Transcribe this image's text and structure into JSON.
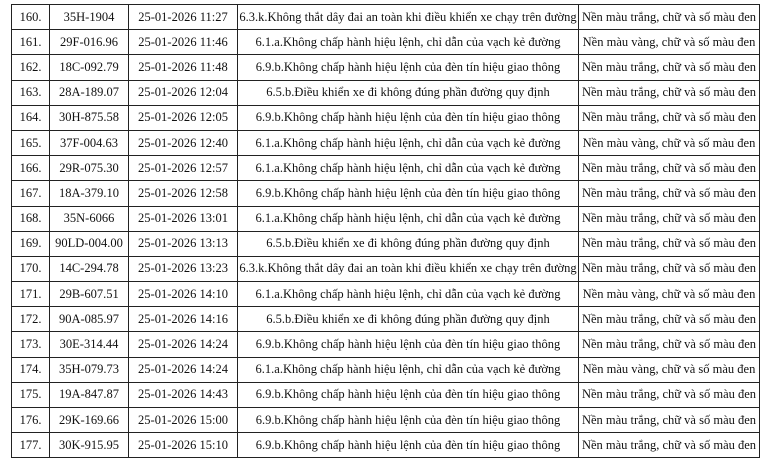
{
  "rows": [
    {
      "no": "160.",
      "plate": "35H-1904",
      "time": "25-01-2026 11:27",
      "violation": "6.3.k.Không thắt dây đai an toàn khi điều khiển xe chạy trên đường",
      "plate_color": "Nền màu trắng, chữ và số màu đen"
    },
    {
      "no": "161.",
      "plate": "29F-016.96",
      "time": "25-01-2026 11:46",
      "violation": "6.1.a.Không chấp hành hiệu lệnh, chỉ dẫn của vạch kẻ đường",
      "plate_color": "Nền màu vàng, chữ và số màu đen"
    },
    {
      "no": "162.",
      "plate": "18C-092.79",
      "time": "25-01-2026 11:48",
      "violation": "6.9.b.Không chấp hành hiệu lệnh của đèn tín hiệu giao thông",
      "plate_color": "Nền màu trắng, chữ và số màu đen"
    },
    {
      "no": "163.",
      "plate": "28A-189.07",
      "time": "25-01-2026 12:04",
      "violation": "6.5.b.Điều khiển xe đi không đúng phần đường quy định",
      "plate_color": "Nền màu trắng, chữ và số màu đen"
    },
    {
      "no": "164.",
      "plate": "30H-875.58",
      "time": "25-01-2026 12:05",
      "violation": "6.9.b.Không chấp hành hiệu lệnh của đèn tín hiệu giao thông",
      "plate_color": "Nền màu trắng, chữ và số màu đen"
    },
    {
      "no": "165.",
      "plate": "37F-004.63",
      "time": "25-01-2026 12:40",
      "violation": "6.1.a.Không chấp hành hiệu lệnh, chỉ dẫn của vạch kẻ đường",
      "plate_color": "Nền màu vàng, chữ và số màu đen"
    },
    {
      "no": "166.",
      "plate": "29R-075.30",
      "time": "25-01-2026 12:57",
      "violation": "6.1.a.Không chấp hành hiệu lệnh, chỉ dẫn của vạch kẻ đường",
      "plate_color": "Nền màu trắng, chữ và số màu đen"
    },
    {
      "no": "167.",
      "plate": "18A-379.10",
      "time": "25-01-2026 12:58",
      "violation": "6.9.b.Không chấp hành hiệu lệnh của đèn tín hiệu giao thông",
      "plate_color": "Nền màu trắng, chữ và số màu đen"
    },
    {
      "no": "168.",
      "plate": "35N-6066",
      "time": "25-01-2026 13:01",
      "violation": "6.1.a.Không chấp hành hiệu lệnh, chỉ dẫn của vạch kẻ đường",
      "plate_color": "Nền màu trắng, chữ và số màu đen"
    },
    {
      "no": "169.",
      "plate": "90LD-004.00",
      "time": "25-01-2026 13:13",
      "violation": "6.5.b.Điều khiển xe đi không đúng phần đường quy định",
      "plate_color": "Nền màu trắng, chữ và số màu đen"
    },
    {
      "no": "170.",
      "plate": "14C-294.78",
      "time": "25-01-2026 13:23",
      "violation": "6.3.k.Không thắt dây đai an toàn khi điều khiển xe chạy trên đường",
      "plate_color": "Nền màu trắng, chữ và số màu đen"
    },
    {
      "no": "171.",
      "plate": "29B-607.51",
      "time": "25-01-2026 14:10",
      "violation": "6.1.a.Không chấp hành hiệu lệnh, chỉ dẫn của vạch kẻ đường",
      "plate_color": "Nền màu vàng, chữ và số màu đen"
    },
    {
      "no": "172.",
      "plate": "90A-085.97",
      "time": "25-01-2026 14:16",
      "violation": "6.5.b.Điều khiển xe đi không đúng phần đường quy định",
      "plate_color": "Nền màu trắng, chữ và số màu đen"
    },
    {
      "no": "173.",
      "plate": "30E-314.44",
      "time": "25-01-2026 14:24",
      "violation": "6.9.b.Không chấp hành hiệu lệnh của đèn tín hiệu giao thông",
      "plate_color": "Nền màu trắng, chữ và số màu đen"
    },
    {
      "no": "174.",
      "plate": "35H-079.73",
      "time": "25-01-2026 14:24",
      "violation": "6.1.a.Không chấp hành hiệu lệnh, chỉ dẫn của vạch kẻ đường",
      "plate_color": "Nền màu vàng, chữ và số màu đen"
    },
    {
      "no": "175.",
      "plate": "19A-847.87",
      "time": "25-01-2026 14:43",
      "violation": "6.9.b.Không chấp hành hiệu lệnh của đèn tín hiệu giao thông",
      "plate_color": "Nền màu trắng, chữ và số màu đen"
    },
    {
      "no": "176.",
      "plate": "29K-169.66",
      "time": "25-01-2026 15:00",
      "violation": "6.9.b.Không chấp hành hiệu lệnh của đèn tín hiệu giao thông",
      "plate_color": "Nền màu trắng, chữ và số màu đen"
    },
    {
      "no": "177.",
      "plate": "30K-915.95",
      "time": "25-01-2026 15:10",
      "violation": "6.9.b.Không chấp hành hiệu lệnh của đèn tín hiệu giao thông",
      "plate_color": "Nền màu trắng, chữ và số màu đen"
    }
  ]
}
